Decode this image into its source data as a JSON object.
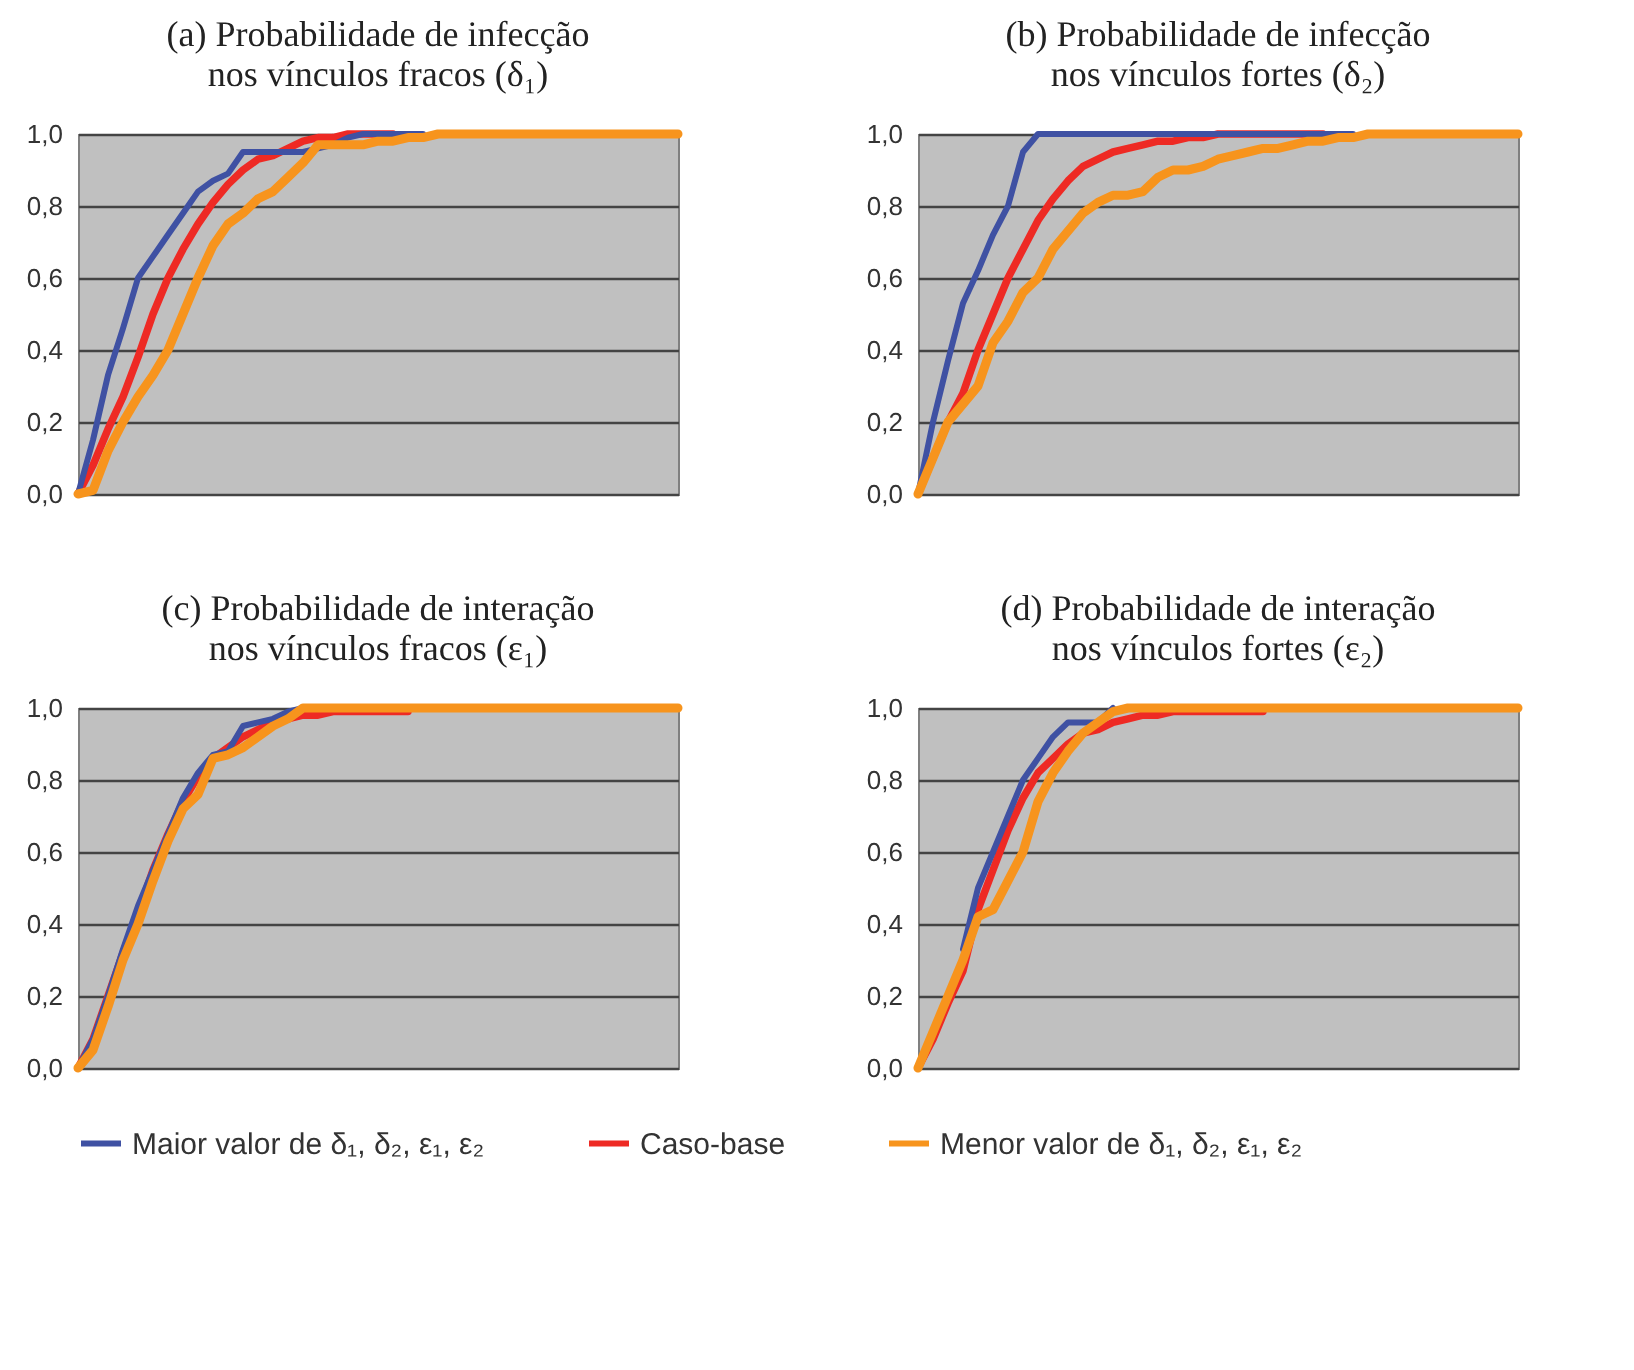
{
  "chart_data": [
    {
      "type": "line",
      "title": "(a) Probabilidade de infecção\nnos vínculos fracos (δ₁)",
      "legend": "bottom",
      "grid": "y",
      "ylim": [
        0,
        1
      ],
      "yticks": [
        {
          "value": 0,
          "label": "0,0"
        },
        {
          "value": 0.2,
          "label": "0,2"
        },
        {
          "value": 0.4,
          "label": "0,4"
        },
        {
          "value": 0.6,
          "label": "0,6"
        },
        {
          "value": 0.8,
          "label": "0,8"
        },
        {
          "value": 1,
          "label": "1,0"
        }
      ],
      "categories": [
        null,
        null,
        null,
        null,
        null,
        null,
        null,
        null,
        null,
        null,
        null,
        null,
        null,
        null,
        null,
        null,
        null,
        null,
        null,
        null,
        null,
        null,
        null,
        null,
        null,
        null,
        null,
        null,
        null,
        null,
        null,
        null,
        null,
        null,
        null,
        null,
        null,
        null,
        null,
        null,
        null
      ],
      "series": [
        {
          "name": "Maior valor de δ₁, δ₂, ε₁, ε₂",
          "color": "#3f51a3",
          "values": [
            0,
            0.15,
            0.33,
            0.46,
            0.6,
            0.66,
            0.72,
            0.78,
            0.84,
            0.87,
            0.89,
            0.95,
            0.95,
            0.95,
            0.95,
            0.95,
            0.96,
            0.97,
            0.99,
            1,
            1,
            1,
            1,
            1,
            null,
            null,
            null,
            null,
            null,
            null,
            null,
            null,
            null,
            null,
            null,
            null,
            null,
            null,
            null,
            null,
            null
          ]
        },
        {
          "name": "Caso-base",
          "color": "#ee2a24",
          "values": [
            0,
            0.08,
            0.18,
            0.27,
            0.38,
            0.5,
            0.6,
            0.68,
            0.75,
            0.81,
            0.86,
            0.9,
            0.93,
            0.94,
            0.96,
            0.98,
            0.99,
            0.99,
            1,
            1,
            1,
            1,
            null,
            null,
            null,
            null,
            null,
            null,
            null,
            null,
            null,
            null,
            null,
            null,
            null,
            null,
            null,
            null,
            null,
            null,
            null
          ]
        },
        {
          "name": "Menor valor de δ₁, δ₂, ε₁, ε₂",
          "color": "#f7941d",
          "values": [
            0,
            0.01,
            0.12,
            0.2,
            0.27,
            0.33,
            0.4,
            0.5,
            0.6,
            0.69,
            0.75,
            0.78,
            0.82,
            0.84,
            0.88,
            0.92,
            0.97,
            0.97,
            0.97,
            0.97,
            0.98,
            0.98,
            0.99,
            0.99,
            1,
            1,
            1,
            1,
            1,
            1,
            1,
            1,
            1,
            1,
            1,
            1,
            1,
            1,
            1,
            1,
            1
          ]
        }
      ]
    },
    {
      "type": "line",
      "title": "(b) Probabilidade de infecção\nnos vínculos fortes (δ₂)",
      "legend": "bottom",
      "grid": "y",
      "ylim": [
        0,
        1
      ],
      "yticks": [
        {
          "value": 0,
          "label": "0,0"
        },
        {
          "value": 0.2,
          "label": "0,2"
        },
        {
          "value": 0.4,
          "label": "0,4"
        },
        {
          "value": 0.6,
          "label": "0,6"
        },
        {
          "value": 0.8,
          "label": "0,8"
        },
        {
          "value": 1,
          "label": "1,0"
        }
      ],
      "categories": [
        null,
        null,
        null,
        null,
        null,
        null,
        null,
        null,
        null,
        null,
        null,
        null,
        null,
        null,
        null,
        null,
        null,
        null,
        null,
        null,
        null,
        null,
        null,
        null,
        null,
        null,
        null,
        null,
        null,
        null,
        null,
        null,
        null,
        null,
        null,
        null,
        null,
        null,
        null,
        null,
        null
      ],
      "series": [
        {
          "name": "Maior valor de δ₁, δ₂, ε₁, ε₂",
          "color": "#3f51a3",
          "values": [
            0,
            0.2,
            0.37,
            0.53,
            0.62,
            0.72,
            0.8,
            0.95,
            1,
            1,
            1,
            1,
            1,
            1,
            1,
            1,
            1,
            1,
            1,
            1,
            1,
            1,
            1,
            1,
            1,
            1,
            1,
            1,
            1,
            1,
            null,
            null,
            null,
            null,
            null,
            null,
            null,
            null,
            null,
            null,
            null
          ]
        },
        {
          "name": "Caso-base",
          "color": "#ee2a24",
          "values": [
            0,
            0.1,
            0.2,
            0.28,
            0.4,
            0.5,
            0.6,
            0.68,
            0.76,
            0.82,
            0.87,
            0.91,
            0.93,
            0.95,
            0.96,
            0.97,
            0.98,
            0.98,
            0.99,
            0.99,
            1,
            1,
            1,
            1,
            1,
            1,
            1,
            1,
            null,
            null,
            null,
            null,
            null,
            null,
            null,
            null,
            null,
            null,
            null,
            null,
            null
          ]
        },
        {
          "name": "Menor valor de δ₁, δ₂, ε₁, ε₂",
          "color": "#f7941d",
          "values": [
            0,
            0.1,
            0.2,
            0.25,
            0.3,
            0.42,
            0.48,
            0.56,
            0.6,
            0.68,
            0.73,
            0.78,
            0.81,
            0.83,
            0.83,
            0.84,
            0.88,
            0.9,
            0.9,
            0.91,
            0.93,
            0.94,
            0.95,
            0.96,
            0.96,
            0.97,
            0.98,
            0.98,
            0.99,
            0.99,
            1,
            1,
            1,
            1,
            1,
            1,
            1,
            1,
            1,
            1,
            1
          ]
        }
      ]
    },
    {
      "type": "line",
      "title": "(c) Probabilidade de interação\nnos vínculos fracos (ε₁)",
      "legend": "bottom",
      "grid": "y",
      "ylim": [
        0,
        1
      ],
      "yticks": [
        {
          "value": 0,
          "label": "0,0"
        },
        {
          "value": 0.2,
          "label": "0,2"
        },
        {
          "value": 0.4,
          "label": "0,4"
        },
        {
          "value": 0.6,
          "label": "0,6"
        },
        {
          "value": 0.8,
          "label": "0,8"
        },
        {
          "value": 1,
          "label": "1,0"
        }
      ],
      "categories": [
        null,
        null,
        null,
        null,
        null,
        null,
        null,
        null,
        null,
        null,
        null,
        null,
        null,
        null,
        null,
        null,
        null,
        null,
        null,
        null,
        null,
        null,
        null,
        null,
        null,
        null,
        null,
        null,
        null,
        null,
        null,
        null,
        null,
        null,
        null,
        null,
        null,
        null,
        null,
        null,
        null
      ],
      "series": [
        {
          "name": "Maior valor de δ₁, δ₂, ε₁, ε₂",
          "color": "#3f51a3",
          "values": [
            0,
            0.08,
            0.2,
            0.33,
            0.45,
            0.55,
            0.65,
            0.75,
            0.82,
            0.87,
            0.88,
            0.95,
            0.96,
            0.97,
            0.99,
            1,
            null,
            null,
            null,
            null,
            null,
            null,
            null,
            null,
            null,
            null,
            null,
            null,
            null,
            null,
            null,
            null,
            null,
            null,
            null,
            null,
            null,
            null,
            null,
            null,
            null
          ]
        },
        {
          "name": "Caso-base",
          "color": "#ee2a24",
          "values": [
            0,
            0.08,
            0.2,
            0.32,
            0.43,
            0.55,
            0.65,
            0.74,
            0.81,
            0.86,
            0.89,
            0.92,
            0.94,
            0.96,
            0.97,
            0.98,
            0.98,
            0.99,
            0.99,
            0.99,
            0.99,
            0.99,
            0.99,
            null,
            null,
            null,
            null,
            null,
            null,
            null,
            null,
            null,
            null,
            null,
            null,
            null,
            null,
            null,
            null,
            null,
            null
          ]
        },
        {
          "name": "Menor valor de δ₁, δ₂, ε₁, ε₂",
          "color": "#f7941d",
          "values": [
            0,
            0.05,
            0.17,
            0.3,
            0.4,
            0.52,
            0.63,
            0.72,
            0.76,
            0.86,
            0.87,
            0.89,
            0.92,
            0.95,
            0.97,
            1,
            1,
            1,
            1,
            1,
            1,
            1,
            1,
            1,
            1,
            1,
            1,
            1,
            1,
            1,
            1,
            1,
            1,
            1,
            1,
            1,
            1,
            1,
            1,
            1,
            1
          ]
        }
      ]
    },
    {
      "type": "line",
      "title": "(d) Probabilidade de interação\nnos vínculos fortes (ε₂)",
      "legend": "bottom",
      "grid": "y",
      "ylim": [
        0,
        1
      ],
      "yticks": [
        {
          "value": 0,
          "label": "0,0"
        },
        {
          "value": 0.2,
          "label": "0,2"
        },
        {
          "value": 0.4,
          "label": "0,4"
        },
        {
          "value": 0.6,
          "label": "0,6"
        },
        {
          "value": 0.8,
          "label": "0,8"
        },
        {
          "value": 1,
          "label": "1,0"
        }
      ],
      "categories": [
        null,
        null,
        null,
        null,
        null,
        null,
        null,
        null,
        null,
        null,
        null,
        null,
        null,
        null,
        null,
        null,
        null,
        null,
        null,
        null,
        null,
        null,
        null,
        null,
        null,
        null,
        null,
        null,
        null,
        null,
        null,
        null,
        null,
        null,
        null,
        null,
        null,
        null,
        null,
        null,
        null
      ],
      "series": [
        {
          "name": "Maior valor de δ₁, δ₂, ε₁, ε₂",
          "color": "#3f51a3",
          "values": [
            null,
            null,
            null,
            0.33,
            0.5,
            0.6,
            0.7,
            0.8,
            0.86,
            0.92,
            0.96,
            0.96,
            0.96,
            1,
            null,
            null,
            null,
            null,
            null,
            null,
            null,
            null,
            null,
            null,
            null,
            null,
            null,
            null,
            null,
            null,
            null,
            null,
            null,
            null,
            null,
            null,
            null,
            null,
            null,
            null,
            null
          ]
        },
        {
          "name": "Caso-base",
          "color": "#ee2a24",
          "values": [
            0,
            0.08,
            0.18,
            0.27,
            0.44,
            0.55,
            0.66,
            0.75,
            0.82,
            0.86,
            0.9,
            0.93,
            0.94,
            0.96,
            0.97,
            0.98,
            0.98,
            0.99,
            0.99,
            0.99,
            0.99,
            0.99,
            0.99,
            0.99,
            null,
            null,
            null,
            null,
            null,
            null,
            null,
            null,
            null,
            null,
            null,
            null,
            null,
            null,
            null,
            null,
            null
          ]
        },
        {
          "name": "Menor valor de δ₁, δ₂, ε₁, ε₂",
          "color": "#f7941d",
          "values": [
            0,
            0.1,
            0.2,
            0.3,
            0.42,
            0.44,
            0.52,
            0.6,
            0.74,
            0.82,
            0.88,
            0.93,
            0.96,
            0.99,
            1,
            1,
            1,
            1,
            1,
            1,
            1,
            1,
            1,
            1,
            1,
            1,
            1,
            1,
            1,
            1,
            1,
            1,
            1,
            1,
            1,
            1,
            1,
            1,
            1,
            1,
            1
          ]
        }
      ]
    }
  ]
}
